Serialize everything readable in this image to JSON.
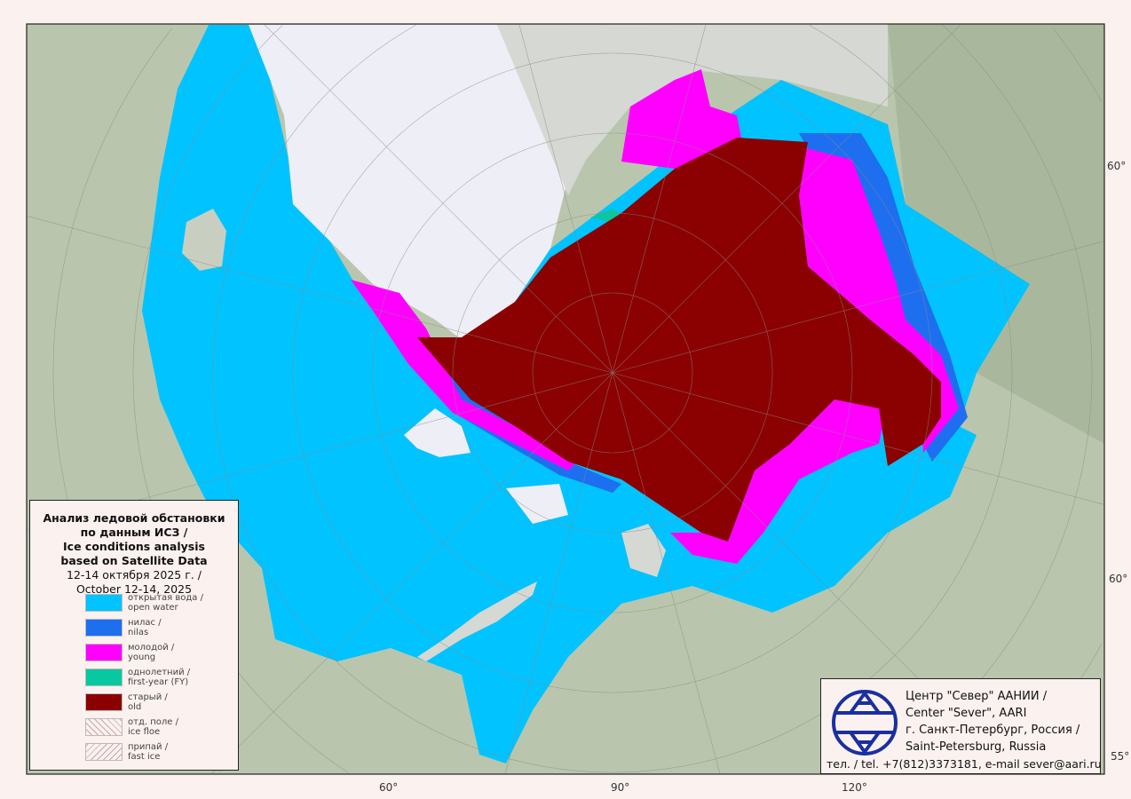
{
  "map": {
    "colors": {
      "open_water": "#00c3ff",
      "nilas": "#1e6ef0",
      "young": "#ff00ff",
      "first_year": "#08c8a0",
      "old": "#8b0000",
      "land": "#b9c6ad",
      "ice_sheet": "#eeeef6",
      "frame_bg": "#fbf1ef"
    },
    "graticule_labels": {
      "right_top": "60°",
      "right_middle": "60°",
      "right_bottom": "55°",
      "bottom_left": "60°",
      "bottom_center": "90°",
      "bottom_right": "120°"
    }
  },
  "legend": {
    "title_lines": [
      "Анализ ледовой обстановки",
      "по данным ИСЗ /",
      "Ice conditions analysis",
      "based on Satellite Data"
    ],
    "date_ru": "12-14 октября 2025 г. /",
    "date_en": "October 12-14, 2025",
    "items": [
      {
        "ru": "открытая вода /",
        "en": "open water",
        "color": "#00c3ff"
      },
      {
        "ru": "нилас /",
        "en": "nilas",
        "color": "#1e6ef0"
      },
      {
        "ru": "молодой /",
        "en": "young",
        "color": "#ff00ff"
      },
      {
        "ru": "однолетний /",
        "en": "first-year (FY)",
        "color": "#08c8a0"
      },
      {
        "ru": "старый /",
        "en": "old",
        "color": "#8b0000"
      },
      {
        "ru": "отд. поле /",
        "en": "ice floe",
        "color": "hatch"
      },
      {
        "ru": "припай /",
        "en": "fast ice",
        "color": "hatch"
      }
    ]
  },
  "organization": {
    "lines": [
      "Центр \"Север\" ААНИИ /",
      "Center \"Sever\", AARI",
      "г. Санкт-Петербург, Россия /",
      "Saint-Petersburg, Russia"
    ],
    "contact": "тел. / tel. +7(812)3373181, e-mail sever@aari.ru",
    "logo_color": "#1a2fa0"
  }
}
